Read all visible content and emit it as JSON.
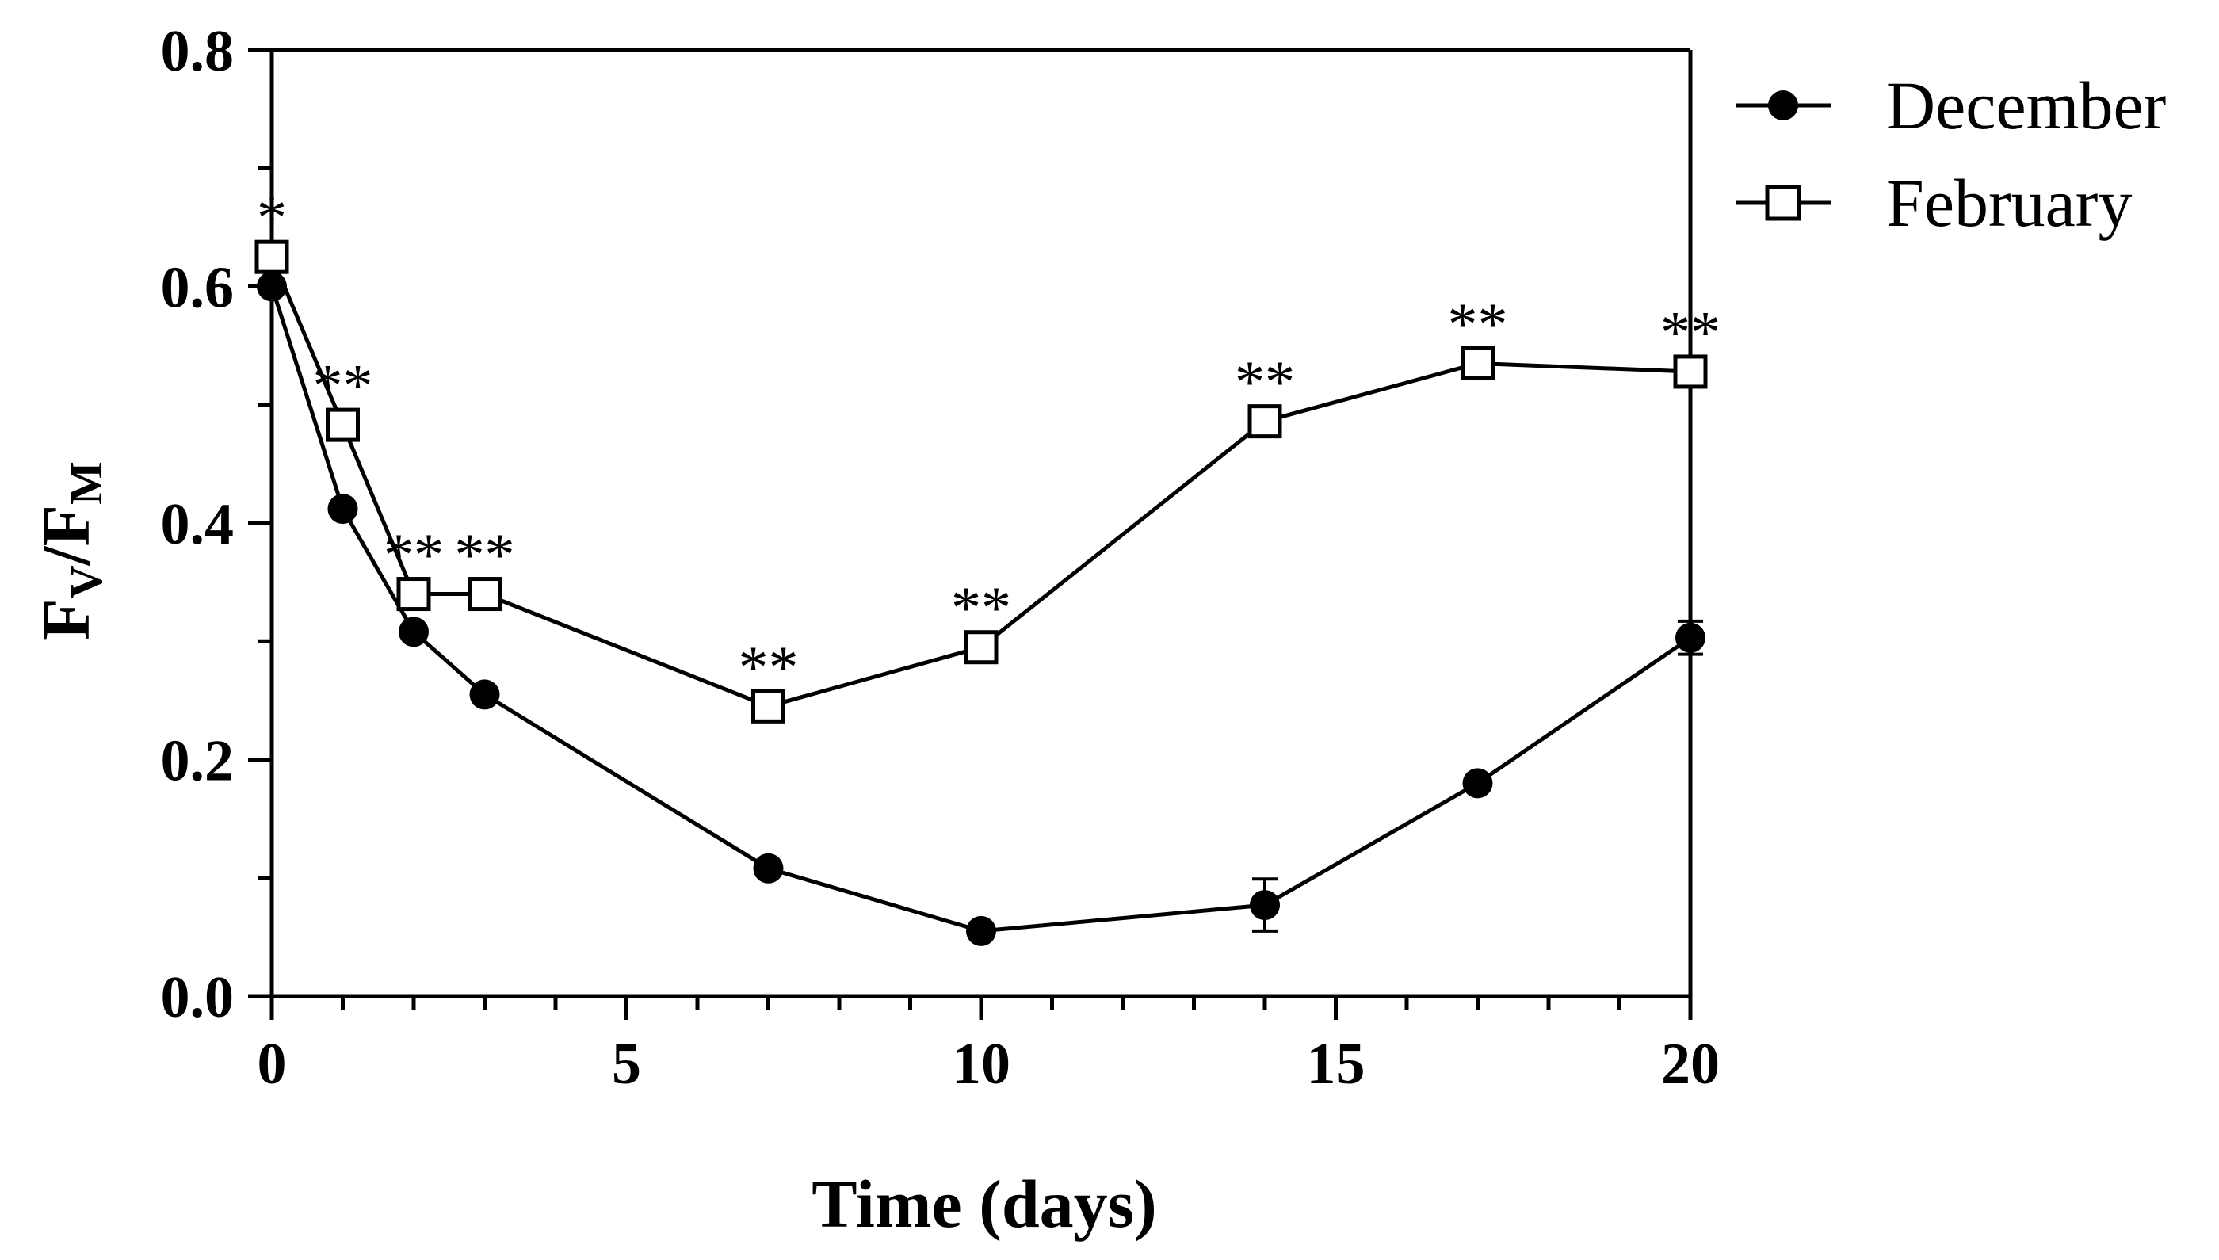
{
  "chart_data": {
    "type": "line",
    "title": "",
    "xlabel": "Time (days)",
    "ylabel": {
      "base_F1": "F",
      "sub_1": "V",
      "slash": "/",
      "base_F2": "F",
      "sub_2": "M"
    },
    "xlim": [
      0,
      20
    ],
    "ylim": [
      0,
      0.8
    ],
    "xticks": [
      "0",
      "5",
      "10",
      "15",
      "20"
    ],
    "yticks": [
      "0.0",
      "0.2",
      "0.4",
      "0.6",
      "0.8"
    ],
    "legend_position": "outside-top-right",
    "series": [
      {
        "name": "December",
        "marker": "filled-circle",
        "x": [
          0,
          1,
          2,
          3,
          7,
          10,
          14,
          17,
          20
        ],
        "y": [
          0.6,
          0.412,
          0.308,
          0.255,
          0.108,
          0.055,
          0.077,
          0.18,
          0.303
        ],
        "err": [
          0.005,
          0.006,
          0.005,
          0.005,
          0.006,
          0.005,
          0.022,
          0.005,
          0.014
        ]
      },
      {
        "name": "February",
        "marker": "open-square",
        "x": [
          0,
          1,
          2,
          3,
          7,
          10,
          14,
          17,
          20
        ],
        "y": [
          0.625,
          0.483,
          0.34,
          0.34,
          0.245,
          0.295,
          0.486,
          0.535,
          0.528
        ],
        "err": [
          0.005,
          0.006,
          0.005,
          0.005,
          0.005,
          0.012,
          0.006,
          0.005,
          0.005
        ]
      }
    ],
    "annotations": [
      {
        "x": 0,
        "text": "*"
      },
      {
        "x": 1,
        "text": "**"
      },
      {
        "x": 2,
        "text": "**"
      },
      {
        "x": 3,
        "text": "**"
      },
      {
        "x": 7,
        "text": "**"
      },
      {
        "x": 10,
        "text": "**"
      },
      {
        "x": 14,
        "text": "**"
      },
      {
        "x": 17,
        "text": "**"
      },
      {
        "x": 20,
        "text": "**"
      }
    ]
  }
}
